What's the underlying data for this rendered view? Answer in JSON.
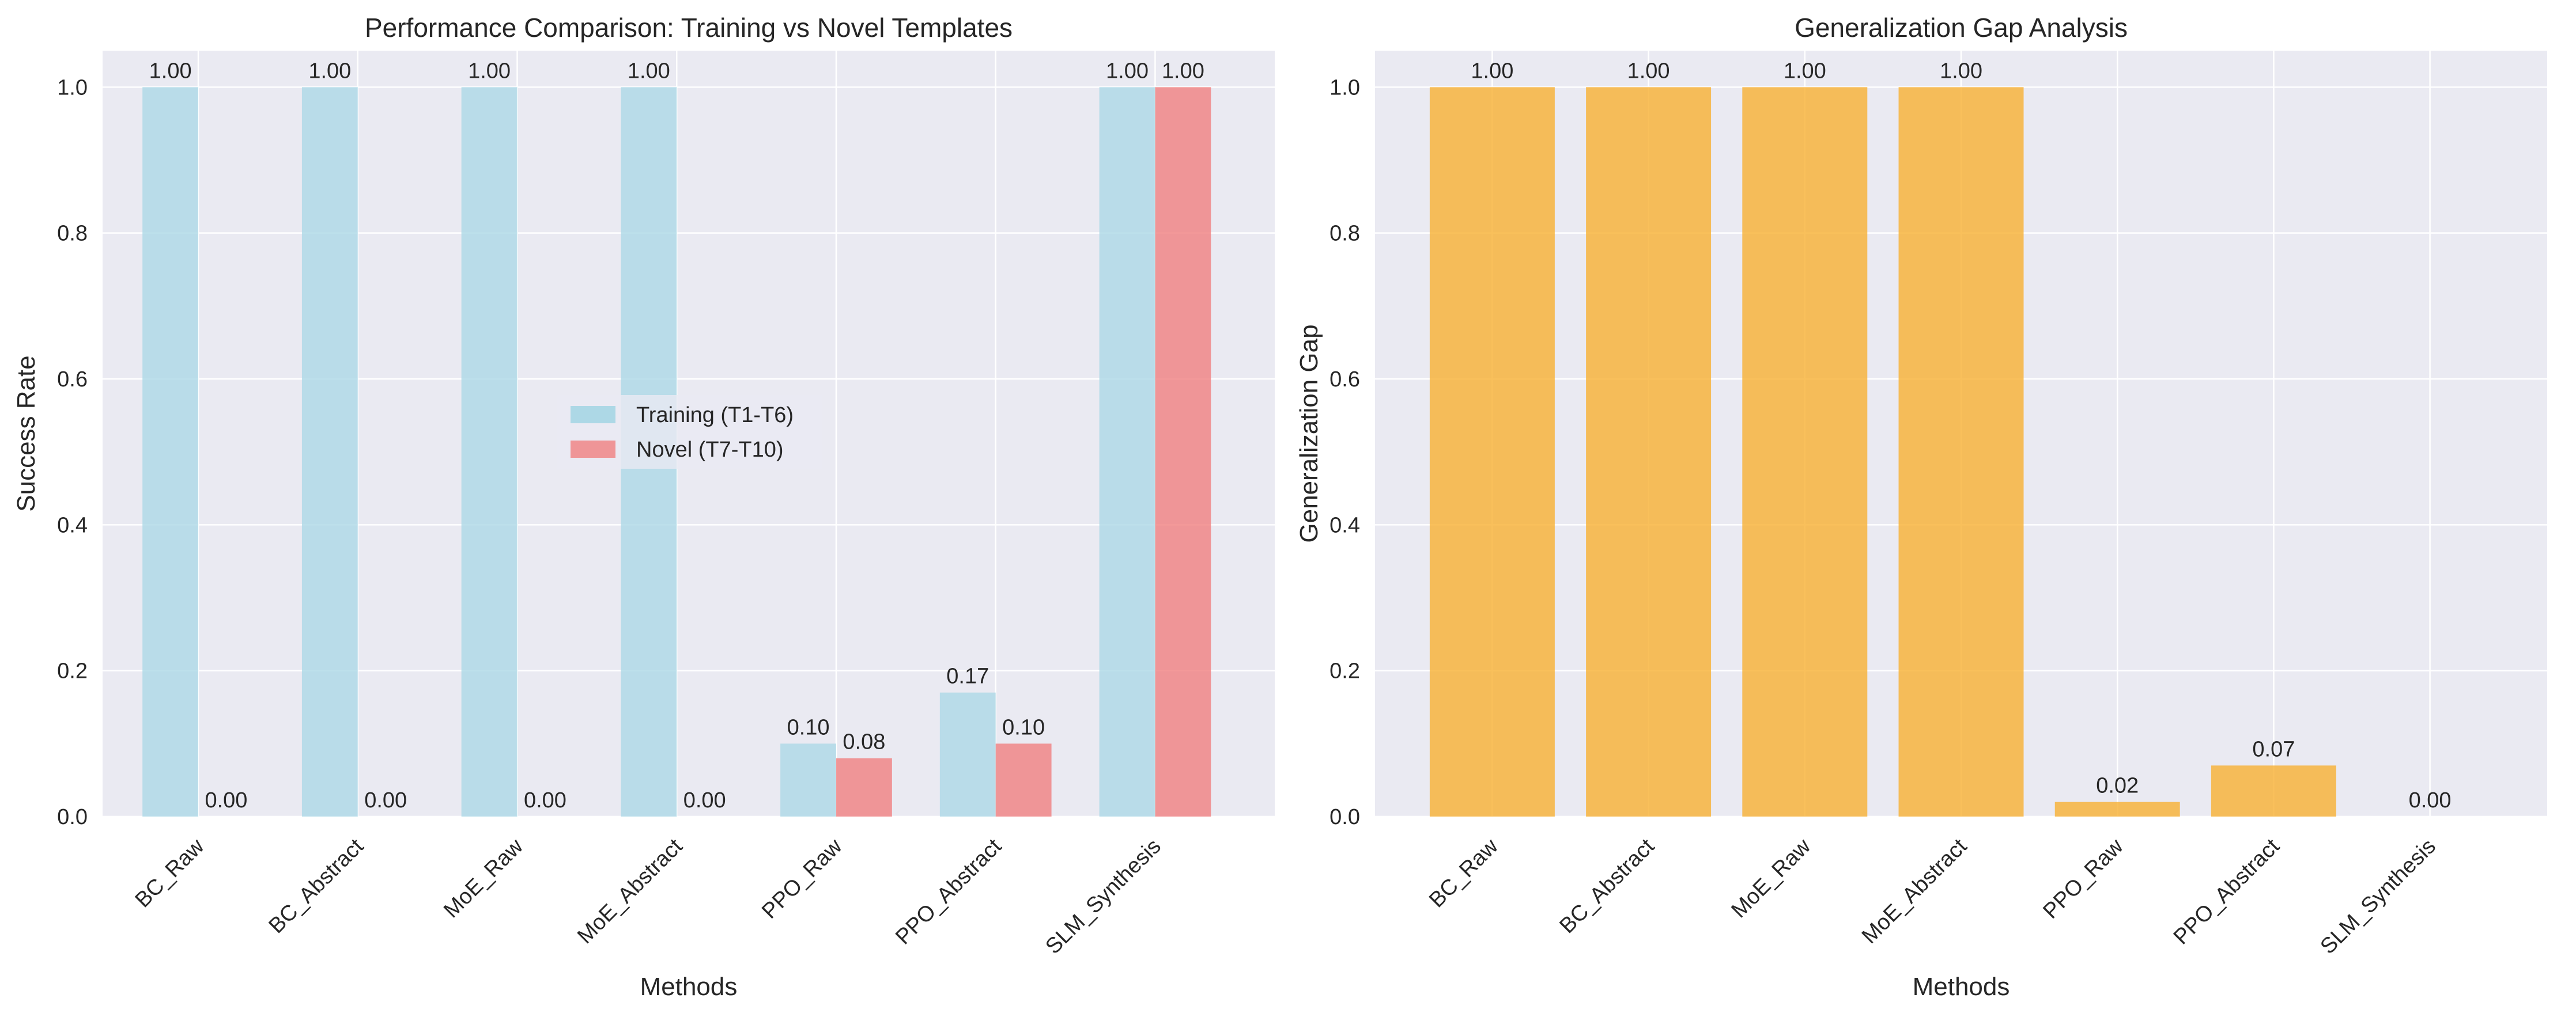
{
  "chart_data": [
    {
      "type": "bar",
      "title": "Performance Comparison: Training vs Novel Templates",
      "xlabel": "Methods",
      "ylabel": "Success Rate",
      "ylim": [
        0,
        1.05
      ],
      "yticks": [
        "0.0",
        "0.2",
        "0.4",
        "0.6",
        "0.8",
        "1.0"
      ],
      "categories": [
        "BC_Raw",
        "BC_Abstract",
        "MoE_Raw",
        "MoE_Abstract",
        "PPO_Raw",
        "PPO_Abstract",
        "SLM_Synthesis"
      ],
      "series": [
        {
          "name": "Training (T1-T6)",
          "color": "#add8e6",
          "values": [
            1.0,
            1.0,
            1.0,
            1.0,
            0.1,
            0.17,
            1.0
          ],
          "labels": [
            "1.00",
            "1.00",
            "1.00",
            "1.00",
            "0.10",
            "0.17",
            "1.00"
          ]
        },
        {
          "name": "Novel (T7-T10)",
          "color": "#f08080",
          "values": [
            0.0,
            0.0,
            0.0,
            0.0,
            0.08,
            0.1,
            1.0
          ],
          "labels": [
            "0.00",
            "0.00",
            "0.00",
            "0.00",
            "0.08",
            "0.10",
            "1.00"
          ]
        }
      ],
      "grid": true,
      "legend": "center"
    },
    {
      "type": "bar",
      "title": "Generalization Gap Analysis",
      "xlabel": "Methods",
      "ylabel": "Generalization Gap",
      "ylim": [
        0,
        1.05
      ],
      "yticks": [
        "0.0",
        "0.2",
        "0.4",
        "0.6",
        "0.8",
        "1.0"
      ],
      "categories": [
        "BC_Raw",
        "BC_Abstract",
        "MoE_Raw",
        "MoE_Abstract",
        "PPO_Raw",
        "PPO_Abstract",
        "SLM_Synthesis"
      ],
      "series": [
        {
          "color": "#f7b032",
          "values": [
            1.0,
            1.0,
            1.0,
            1.0,
            0.02,
            0.07,
            0.0
          ],
          "labels": [
            "1.00",
            "1.00",
            "1.00",
            "1.00",
            "0.02",
            "0.07",
            "0.00"
          ]
        }
      ],
      "grid": true
    }
  ]
}
